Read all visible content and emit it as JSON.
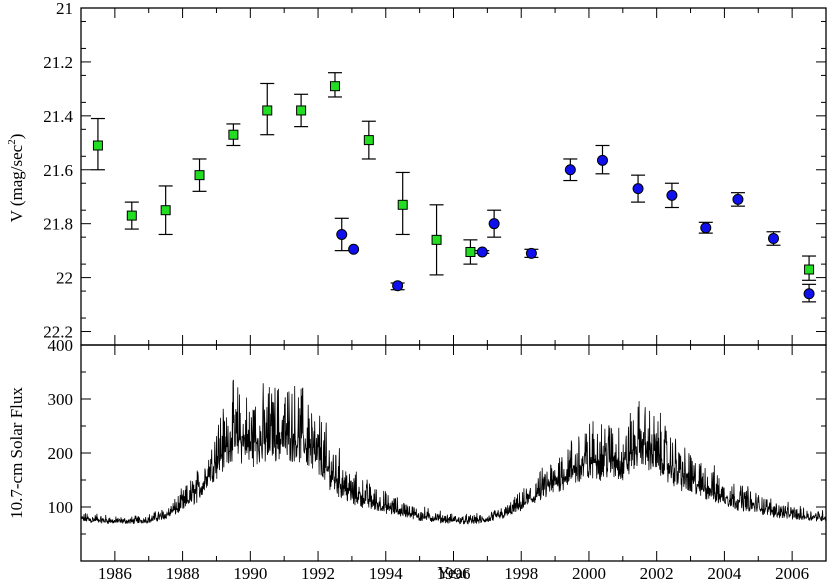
{
  "chart_data": [
    {
      "type": "scatter",
      "panel": "top",
      "ylabel_main": "V (mag/sec",
      "ylabel_sup": "2",
      "ylabel_close": ")",
      "xlim": [
        1985,
        2007
      ],
      "ylim": [
        21,
        22.25
      ],
      "y_inverted": true,
      "yticks": [
        21,
        21.2,
        21.4,
        21.6,
        21.8,
        22,
        22.2
      ],
      "ytick_labels": [
        "21",
        "21.2",
        "21.4",
        "21.6",
        "21.8",
        "22",
        "22.2"
      ],
      "grid": false,
      "legend": "none",
      "series": [
        {
          "marker": "square",
          "color": "#22dd22",
          "points": [
            {
              "x": 1985.5,
              "y": 21.51,
              "err_lo": 21.41,
              "err_hi": 21.6
            },
            {
              "x": 1986.5,
              "y": 21.77,
              "err_lo": 21.72,
              "err_hi": 21.82
            },
            {
              "x": 1987.5,
              "y": 21.75,
              "err_lo": 21.66,
              "err_hi": 21.84
            },
            {
              "x": 1988.5,
              "y": 21.62,
              "err_lo": 21.56,
              "err_hi": 21.68
            },
            {
              "x": 1989.5,
              "y": 21.47,
              "err_lo": 21.43,
              "err_hi": 21.51
            },
            {
              "x": 1990.5,
              "y": 21.38,
              "err_lo": 21.28,
              "err_hi": 21.47
            },
            {
              "x": 1991.5,
              "y": 21.38,
              "err_lo": 21.32,
              "err_hi": 21.44
            },
            {
              "x": 1992.5,
              "y": 21.29,
              "err_lo": 21.24,
              "err_hi": 21.33
            },
            {
              "x": 1993.5,
              "y": 21.49,
              "err_lo": 21.42,
              "err_hi": 21.56
            },
            {
              "x": 1994.5,
              "y": 21.73,
              "err_lo": 21.61,
              "err_hi": 21.84
            },
            {
              "x": 1995.5,
              "y": 21.86,
              "err_lo": 21.73,
              "err_hi": 21.99
            },
            {
              "x": 1996.5,
              "y": 21.905,
              "err_lo": 21.86,
              "err_hi": 21.95
            },
            {
              "x": 2006.5,
              "y": 21.97,
              "err_lo": 21.92,
              "err_hi": 22.01
            }
          ]
        },
        {
          "marker": "circle",
          "color": "#1010ee",
          "points": [
            {
              "x": 1992.7,
              "y": 21.84,
              "err_lo": 21.78,
              "err_hi": 21.9
            },
            {
              "x": 1993.05,
              "y": 21.895,
              "err_lo": 21.895,
              "err_hi": 21.895
            },
            {
              "x": 1994.35,
              "y": 22.03,
              "err_lo": 22.02,
              "err_hi": 22.045
            },
            {
              "x": 1996.85,
              "y": 21.905,
              "err_lo": 21.9,
              "err_hi": 21.91
            },
            {
              "x": 1997.2,
              "y": 21.8,
              "err_lo": 21.75,
              "err_hi": 21.85
            },
            {
              "x": 1998.3,
              "y": 21.91,
              "err_lo": 21.895,
              "err_hi": 21.925
            },
            {
              "x": 1999.45,
              "y": 21.6,
              "err_lo": 21.56,
              "err_hi": 21.64
            },
            {
              "x": 2000.4,
              "y": 21.565,
              "err_lo": 21.51,
              "err_hi": 21.615
            },
            {
              "x": 2001.45,
              "y": 21.67,
              "err_lo": 21.62,
              "err_hi": 21.72
            },
            {
              "x": 2002.45,
              "y": 21.695,
              "err_lo": 21.65,
              "err_hi": 21.74
            },
            {
              "x": 2003.45,
              "y": 21.815,
              "err_lo": 21.795,
              "err_hi": 21.835
            },
            {
              "x": 2004.4,
              "y": 21.71,
              "err_lo": 21.685,
              "err_hi": 21.735
            },
            {
              "x": 2005.45,
              "y": 21.855,
              "err_lo": 21.83,
              "err_hi": 21.88
            },
            {
              "x": 2006.5,
              "y": 22.06,
              "err_lo": 22.025,
              "err_hi": 22.09
            }
          ]
        }
      ]
    },
    {
      "type": "line",
      "panel": "bottom",
      "ylabel": "10.7-cm Solar Flux",
      "xlabel": "Year",
      "xlim": [
        1985,
        2007
      ],
      "ylim": [
        0,
        400
      ],
      "yticks": [
        100,
        200,
        300,
        400
      ],
      "ytick_labels": [
        "100",
        "200",
        "300",
        "400"
      ],
      "xticks": [
        1986,
        1988,
        1990,
        1992,
        1994,
        1996,
        1998,
        2000,
        2002,
        2004,
        2006
      ],
      "xtick_labels": [
        "1986",
        "1988",
        "1990",
        "1992",
        "1994",
        "1996",
        "1998",
        "2000",
        "2002",
        "2004",
        "2006"
      ],
      "grid": false,
      "legend": "none",
      "series": [
        {
          "color": "#000000",
          "x": [
            1985.0,
            1985.5,
            1986.0,
            1986.5,
            1987.0,
            1987.5,
            1988.0,
            1988.5,
            1989.0,
            1989.5,
            1990.0,
            1990.5,
            1991.0,
            1991.5,
            1992.0,
            1992.5,
            1993.0,
            1993.5,
            1994.0,
            1994.5,
            1995.0,
            1995.5,
            1996.0,
            1996.5,
            1997.0,
            1997.5,
            1998.0,
            1998.5,
            1999.0,
            1999.5,
            2000.0,
            2000.5,
            2001.0,
            2001.5,
            2002.0,
            2002.5,
            2003.0,
            2003.5,
            2004.0,
            2004.5,
            2005.0,
            2005.5,
            2006.0,
            2006.5,
            2007.0
          ],
          "y": [
            76,
            74,
            72,
            72,
            74,
            82,
            100,
            125,
            178,
            218,
            205,
            212,
            220,
            215,
            180,
            145,
            118,
            108,
            96,
            88,
            80,
            76,
            73,
            72,
            74,
            84,
            100,
            118,
            140,
            160,
            172,
            178,
            170,
            205,
            185,
            160,
            138,
            128,
            112,
            104,
            96,
            88,
            82,
            80,
            78
          ],
          "amp": [
            8,
            8,
            6,
            6,
            8,
            10,
            18,
            28,
            50,
            60,
            60,
            62,
            65,
            62,
            55,
            40,
            28,
            22,
            18,
            14,
            12,
            10,
            8,
            8,
            8,
            10,
            16,
            24,
            34,
            40,
            48,
            52,
            50,
            52,
            50,
            42,
            36,
            30,
            26,
            22,
            18,
            14,
            12,
            10,
            10
          ]
        }
      ]
    }
  ]
}
